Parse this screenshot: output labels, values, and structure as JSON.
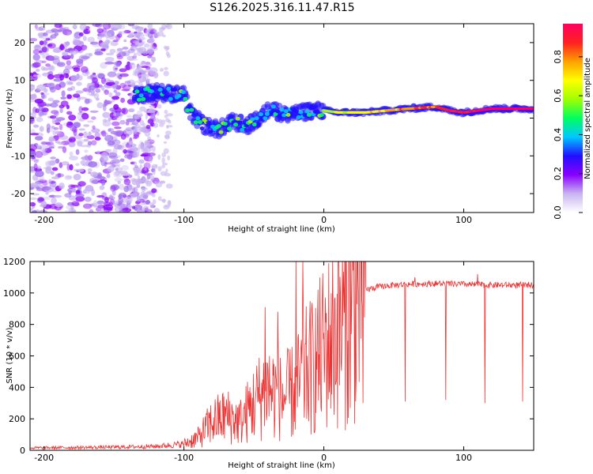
{
  "title": "S126.2025.316.11.47.R15",
  "chart_data": [
    {
      "type": "heatmap",
      "name": "spectrogram",
      "xlabel": "Height of straight line (km)",
      "ylabel": "Frequency (Hz)",
      "xlim": [
        -210,
        150
      ],
      "ylim": [
        -25,
        25
      ],
      "xticks": [
        -200,
        -100,
        0,
        100
      ],
      "xtick_labels": [
        "-200",
        "-100",
        "0",
        "100"
      ],
      "yticks": [
        -20,
        -10,
        0,
        10,
        20
      ],
      "ytick_labels": [
        "-20",
        "-10",
        "0",
        "10",
        "20"
      ],
      "colorbar": {
        "label": "Normalized spectral amplitude",
        "range": [
          0,
          0.97
        ],
        "ticks": [
          0,
          0.2,
          0.4,
          0.6,
          0.8
        ],
        "tick_labels": [
          "0.0",
          "0.2",
          "0.4",
          "0.6",
          "0.8"
        ],
        "colormap": "rainbow",
        "colors": [
          "#ffffff",
          "#c8b4f0",
          "#8800ff",
          "#2010ff",
          "#00c8ff",
          "#00ff60",
          "#a0ff00",
          "#ffff00",
          "#ffa000",
          "#ff2020",
          "#ff0060"
        ]
      },
      "ridge": {
        "description": "dominant frequency ridge (Hz) vs height (km)",
        "x": [
          -135,
          -120,
          -100,
          -95,
          -85,
          -75,
          -65,
          -55,
          -45,
          -38,
          -30,
          -20,
          -10,
          0,
          10,
          30,
          60,
          80,
          90,
          100,
          120,
          150
        ],
        "y": [
          6,
          7,
          6,
          1,
          -2,
          -3,
          -1,
          -2,
          0,
          3,
          1,
          1,
          2,
          2,
          1.5,
          1.5,
          2.5,
          3,
          2,
          1.5,
          2.5,
          2.5
        ]
      }
    },
    {
      "type": "line",
      "name": "snr",
      "xlabel": "Height of straight line (km)",
      "ylabel": "SNR (10 * v/v)",
      "xlim": [
        -210,
        150
      ],
      "ylim": [
        0,
        1200
      ],
      "xticks": [
        -200,
        -100,
        0,
        100
      ],
      "xtick_labels": [
        "-200",
        "-100",
        "0",
        "100"
      ],
      "yticks": [
        0,
        200,
        400,
        600,
        800,
        1000,
        1200
      ],
      "ytick_labels": [
        "0",
        "200",
        "400",
        "600",
        "800",
        "1000",
        "1200"
      ],
      "color": "#ee3333",
      "envelope": {
        "x": [
          -210,
          -150,
          -120,
          -100,
          -90,
          -80,
          -70,
          -60,
          -50,
          -40,
          -30,
          -20,
          -15,
          -10,
          -5,
          0,
          5,
          10,
          15,
          20,
          25,
          30,
          40,
          50,
          60,
          80,
          100,
          120,
          150
        ],
        "y": [
          15,
          20,
          25,
          40,
          80,
          180,
          220,
          180,
          300,
          400,
          330,
          380,
          480,
          520,
          560,
          650,
          700,
          760,
          820,
          900,
          980,
          1020,
          1040,
          1050,
          1055,
          1060,
          1055,
          1050,
          1050
        ]
      },
      "spikes": [
        {
          "x": -42,
          "y": 910
        },
        {
          "x": -33,
          "y": 880
        },
        {
          "x": -20,
          "y": 1220
        },
        {
          "x": -15,
          "y": 1200
        },
        {
          "x": 10,
          "y": 1240
        },
        {
          "x": 65,
          "y": 1100
        },
        {
          "x": 110,
          "y": 1120
        }
      ],
      "dips": [
        {
          "x": 28,
          "y": 300
        },
        {
          "x": 58,
          "y": 310
        },
        {
          "x": 87,
          "y": 320
        },
        {
          "x": 115,
          "y": 300
        },
        {
          "x": 142,
          "y": 310
        }
      ]
    }
  ]
}
